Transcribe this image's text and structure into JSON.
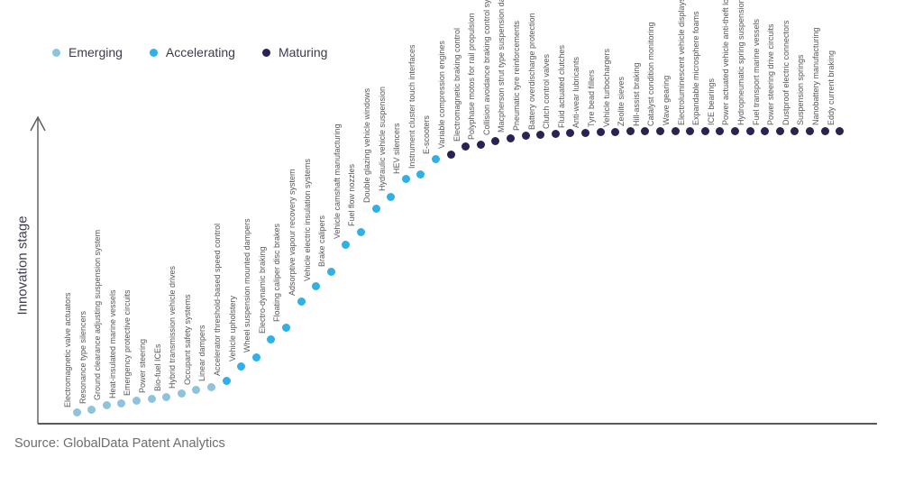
{
  "legend": {
    "items": [
      {
        "label": "Emerging",
        "color": "#8FC3DD"
      },
      {
        "label": "Accelerating",
        "color": "#2FB0E6"
      },
      {
        "label": "Maturing",
        "color": "#2B2153"
      }
    ]
  },
  "axis": {
    "y_label": "Innovation stage"
  },
  "source": "Source: GlobalData Patent Analytics",
  "chart_data": {
    "type": "scatter",
    "title": "",
    "xlabel": "",
    "ylabel": "Innovation stage",
    "legend_position": "top-left",
    "grid": false,
    "y_axis_has_arrow": true,
    "ylim": [
      0,
      100
    ],
    "stage_colors": {
      "Emerging": "#8FC3DD",
      "Accelerating": "#2FB0E6",
      "Maturing": "#2B2153"
    },
    "layout": {
      "x_start": 85,
      "x_step": 16.6,
      "y_base": 470,
      "y_top": 145
    },
    "items": [
      {
        "name": "Electromagnetic valve actuators",
        "stage": "Emerging",
        "level": 3.7
      },
      {
        "name": "Resonance type silencers",
        "stage": "Emerging",
        "level": 4.9
      },
      {
        "name": "Ground clearance adjusting suspension system",
        "stage": "Emerging",
        "level": 6.2
      },
      {
        "name": "Heat-insulated marine vessels",
        "stage": "Emerging",
        "level": 6.8
      },
      {
        "name": "Emergency protective circuits",
        "stage": "Emerging",
        "level": 7.7
      },
      {
        "name": "Power steering",
        "stage": "Emerging",
        "level": 8.6
      },
      {
        "name": "Bio-fuel ICEs",
        "stage": "Emerging",
        "level": 9.2
      },
      {
        "name": "Hybrid transmission vehicle drives",
        "stage": "Emerging",
        "level": 10.2
      },
      {
        "name": "Occupant safety systems",
        "stage": "Emerging",
        "level": 11.4
      },
      {
        "name": "Linear dampers",
        "stage": "Emerging",
        "level": 12.6
      },
      {
        "name": "Accelerator threshold-based speed control",
        "stage": "Accelerating",
        "level": 14.5
      },
      {
        "name": "Vehicle upholstery",
        "stage": "Accelerating",
        "level": 19.4
      },
      {
        "name": "Wheel suspension mounted dampers",
        "stage": "Accelerating",
        "level": 22.5
      },
      {
        "name": "Electro-dynamic braking",
        "stage": "Accelerating",
        "level": 28.9
      },
      {
        "name": "Floating caliper disc brakes",
        "stage": "Accelerating",
        "level": 32.9
      },
      {
        "name": "Adsorptive vapour recovery system",
        "stage": "Accelerating",
        "level": 41.8
      },
      {
        "name": "Vehicle electric insulation systems",
        "stage": "Accelerating",
        "level": 46.8
      },
      {
        "name": "Brake calipers",
        "stage": "Accelerating",
        "level": 51.7
      },
      {
        "name": "Vehicle camshaft manufacturing",
        "stage": "Accelerating",
        "level": 61.2
      },
      {
        "name": "Fuel flow nozzles",
        "stage": "Accelerating",
        "level": 65.5
      },
      {
        "name": "Double glazing vehicle windows",
        "stage": "Accelerating",
        "level": 73.5
      },
      {
        "name": "Hydraulic vehicle suspension",
        "stage": "Accelerating",
        "level": 77.5
      },
      {
        "name": "HEV silencers",
        "stage": "Accelerating",
        "level": 83.4
      },
      {
        "name": "Instrument cluster touch interfaces",
        "stage": "Accelerating",
        "level": 85.2
      },
      {
        "name": "E-scooters",
        "stage": "Accelerating",
        "level": 90.2
      },
      {
        "name": "Variable compression engines",
        "stage": "Maturing",
        "level": 92.0
      },
      {
        "name": "Electromagnetic braking control",
        "stage": "Maturing",
        "level": 94.5
      },
      {
        "name": "Polyphase motos for rail propulsion",
        "stage": "Maturing",
        "level": 95.1
      },
      {
        "name": "Collision avoidance braking control system",
        "stage": "Maturing",
        "level": 96.6
      },
      {
        "name": "Macpherson strut type suspension damper",
        "stage": "Maturing",
        "level": 97.5
      },
      {
        "name": "Pneumatic tyre reinforcements",
        "stage": "Maturing",
        "level": 98.2
      },
      {
        "name": "Battery overdischarge protection",
        "stage": "Maturing",
        "level": 98.5
      },
      {
        "name": "Clutch control valves",
        "stage": "Maturing",
        "level": 98.8
      },
      {
        "name": "Fluid actuated clutches",
        "stage": "Maturing",
        "level": 99.1
      },
      {
        "name": "Anti-wear lubricants",
        "stage": "Maturing",
        "level": 99.1
      },
      {
        "name": "Tyre bead fillers",
        "stage": "Maturing",
        "level": 99.4
      },
      {
        "name": "Vehicle turbochargers",
        "stage": "Maturing",
        "level": 99.4
      },
      {
        "name": "Zeolite sieves",
        "stage": "Maturing",
        "level": 99.7
      },
      {
        "name": "Hill-assist braking",
        "stage": "Maturing",
        "level": 99.7
      },
      {
        "name": "Catalyst condition monitoring",
        "stage": "Maturing",
        "level": 99.7
      },
      {
        "name": "Wave gearing",
        "stage": "Maturing",
        "level": 100
      },
      {
        "name": "Electroluminescent vehicle displays",
        "stage": "Maturing",
        "level": 100
      },
      {
        "name": "Expandable microsphere foams",
        "stage": "Maturing",
        "level": 100
      },
      {
        "name": "ICE bearings",
        "stage": "Maturing",
        "level": 100
      },
      {
        "name": "Power actuated vehicle anti-theft locks",
        "stage": "Maturing",
        "level": 100
      },
      {
        "name": "Hydropneumatic spring suspensions",
        "stage": "Maturing",
        "level": 100
      },
      {
        "name": "Fuel transport marine vessels",
        "stage": "Maturing",
        "level": 100
      },
      {
        "name": "Power steering drive circuits",
        "stage": "Maturing",
        "level": 100
      },
      {
        "name": "Dustproof electric connectors",
        "stage": "Maturing",
        "level": 100
      },
      {
        "name": "Suspension springs",
        "stage": "Maturing",
        "level": 100
      },
      {
        "name": "Nanobattery manufacturing",
        "stage": "Maturing",
        "level": 100
      },
      {
        "name": "Eddy current braking",
        "stage": "Maturing",
        "level": 100
      }
    ]
  }
}
